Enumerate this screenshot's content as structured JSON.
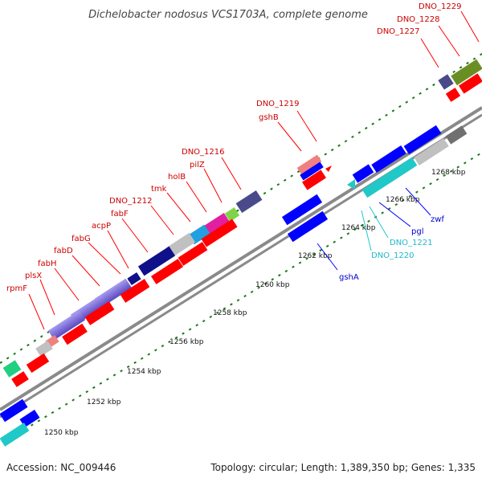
{
  "title": "Dichelobacter nodosus VCS1703A, complete genome",
  "footer": {
    "accession": "Accession: NC_009446",
    "summary": "Topology: circular; Length: 1,389,350 bp; Genes: 1,335"
  },
  "colors": {
    "red": "#ff0000",
    "blue": "#0000ff",
    "cyan": "#20c8c8",
    "purple": "#7a6cd8",
    "navy": "#10108a",
    "green_tick": "#1a7a1a",
    "backbone": "#8a8a8a"
  },
  "ticks": [
    "1250 kbp",
    "1252 kbp",
    "1254 kbp",
    "1256 kbp",
    "1258 kbp",
    "1260 kbp",
    "1262 kbp",
    "1264 kbp",
    "1266 kbp",
    "1268 kbp"
  ],
  "labels_red": [
    "rpmF",
    "plsX",
    "fabH",
    "fabD",
    "fabG",
    "acpP",
    "fabF",
    "DNO_1212",
    "tmk",
    "holB",
    "pilZ",
    "DNO_1216",
    "gshB",
    "DNO_1219",
    "DNO_1227",
    "DNO_1228",
    "DNO_1229"
  ],
  "labels_blue": [
    "gshA",
    "zwf",
    "pgl"
  ],
  "labels_cyan": [
    "DNO_1221",
    "DNO_1220"
  ]
}
